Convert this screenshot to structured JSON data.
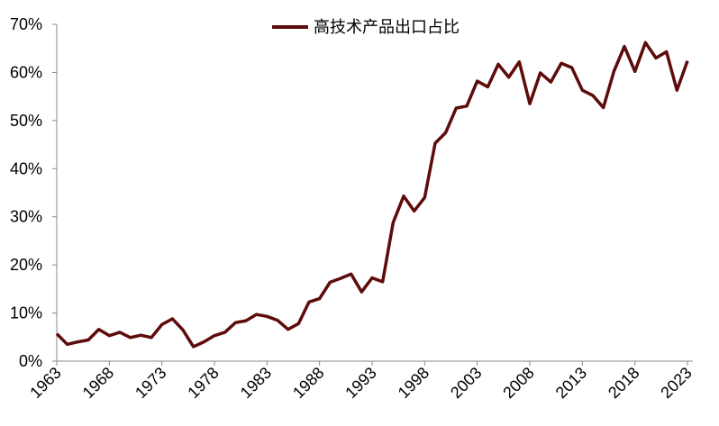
{
  "chart_data": {
    "type": "line",
    "x": [
      1963,
      1964,
      1965,
      1966,
      1967,
      1968,
      1969,
      1970,
      1971,
      1972,
      1973,
      1974,
      1975,
      1976,
      1977,
      1978,
      1979,
      1980,
      1981,
      1982,
      1983,
      1984,
      1985,
      1986,
      1987,
      1988,
      1989,
      1990,
      1991,
      1992,
      1993,
      1994,
      1995,
      1996,
      1997,
      1998,
      1999,
      2000,
      2001,
      2002,
      2003,
      2004,
      2005,
      2006,
      2007,
      2008,
      2009,
      2010,
      2011,
      2012,
      2013,
      2014,
      2015,
      2016,
      2017,
      2018,
      2019,
      2020,
      2021,
      2022,
      2023
    ],
    "series": [
      {
        "name": "高技术产品出口占比",
        "color": "#5e0b0b",
        "values": [
          5.7,
          3.5,
          4.0,
          4.4,
          6.6,
          5.3,
          6.0,
          4.9,
          5.4,
          4.9,
          7.6,
          8.8,
          6.5,
          3.0,
          4.0,
          5.3,
          6.0,
          8.0,
          8.4,
          9.7,
          9.3,
          8.5,
          6.6,
          7.8,
          12.3,
          13.0,
          16.4,
          17.2,
          18.1,
          14.4,
          17.3,
          16.5,
          28.8,
          34.3,
          31.2,
          34.0,
          45.3,
          47.5,
          52.6,
          53.0,
          58.2,
          57.0,
          61.7,
          59.0,
          62.2,
          53.5,
          59.9,
          58.0,
          61.9,
          61.0,
          56.3,
          55.2,
          52.7,
          60.2,
          65.4,
          60.2,
          66.2,
          63.0,
          64.3,
          56.3,
          62.4
        ]
      }
    ],
    "xlim": [
      1963,
      2023
    ],
    "xticks": [
      1963,
      1968,
      1973,
      1978,
      1983,
      1988,
      1993,
      1998,
      2003,
      2008,
      2013,
      2018,
      2023
    ],
    "ylim": [
      0,
      70
    ],
    "yticks": [
      {
        "value": 0,
        "label": "0%"
      },
      {
        "value": 10,
        "label": "10%"
      },
      {
        "value": 20,
        "label": "20%"
      },
      {
        "value": 30,
        "label": "30%"
      },
      {
        "value": 40,
        "label": "40%"
      },
      {
        "value": 50,
        "label": "50%"
      },
      {
        "value": 60,
        "label": "60%"
      },
      {
        "value": 70,
        "label": "70%"
      }
    ],
    "grid": false,
    "legend": "top"
  }
}
